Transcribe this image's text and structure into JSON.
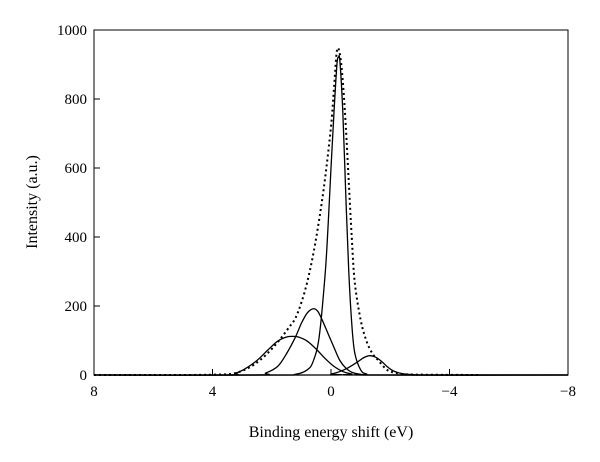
{
  "chart_data": {
    "type": "line",
    "title": "",
    "xlabel": "Binding energy shift (eV)",
    "ylabel": "Intensity (a.u.)",
    "xlim": [
      8,
      -8
    ],
    "ylim": [
      0,
      1000
    ],
    "x_reversed": true,
    "x_ticks": [
      8,
      4,
      0,
      -4,
      -8
    ],
    "x_tick_labels": [
      "8",
      "4",
      "0",
      "−4",
      "−8"
    ],
    "y_ticks": [
      0,
      200,
      400,
      600,
      800,
      1000
    ],
    "y_tick_labels": [
      "0",
      "200",
      "400",
      "600",
      "800",
      "1000"
    ],
    "grid": false,
    "legend": "none",
    "series": [
      {
        "style": "dotted",
        "color": "#000000",
        "points": [
          [
            8,
            0
          ],
          [
            5,
            0
          ],
          [
            4,
            1
          ],
          [
            3.4,
            3
          ],
          [
            3,
            12
          ],
          [
            2.6,
            30
          ],
          [
            2.2,
            58
          ],
          [
            1.8,
            95
          ],
          [
            1.4,
            140
          ],
          [
            1.2,
            165
          ],
          [
            1.0,
            210
          ],
          [
            0.8,
            270
          ],
          [
            0.6,
            350
          ],
          [
            0.4,
            450
          ],
          [
            0.2,
            570
          ],
          [
            0.0,
            720
          ],
          [
            -0.1,
            830
          ],
          [
            -0.2,
            940
          ],
          [
            -0.3,
            930
          ],
          [
            -0.4,
            850
          ],
          [
            -0.5,
            720
          ],
          [
            -0.6,
            560
          ],
          [
            -0.7,
            400
          ],
          [
            -0.8,
            270
          ],
          [
            -1.0,
            160
          ],
          [
            -1.2,
            98
          ],
          [
            -1.4,
            62
          ],
          [
            -1.6,
            42
          ],
          [
            -1.8,
            22
          ],
          [
            -2.0,
            10
          ],
          [
            -2.4,
            3
          ],
          [
            -3,
            1
          ],
          [
            -5,
            0
          ]
        ]
      },
      {
        "style": "solid",
        "color": "#000000",
        "points": [
          [
            8,
            0
          ],
          [
            2,
            0
          ],
          [
            1.2,
            2
          ],
          [
            0.8,
            15
          ],
          [
            0.6,
            40
          ],
          [
            0.4,
            110
          ],
          [
            0.2,
            290
          ],
          [
            0.1,
            430
          ],
          [
            0.0,
            600
          ],
          [
            -0.1,
            760
          ],
          [
            -0.2,
            900
          ],
          [
            -0.25,
            920
          ],
          [
            -0.3,
            910
          ],
          [
            -0.4,
            760
          ],
          [
            -0.5,
            520
          ],
          [
            -0.6,
            300
          ],
          [
            -0.7,
            150
          ],
          [
            -0.8,
            65
          ],
          [
            -1.0,
            15
          ],
          [
            -1.2,
            3
          ],
          [
            -1.6,
            0
          ],
          [
            -8,
            0
          ]
        ]
      },
      {
        "style": "solid",
        "color": "#000000",
        "points": [
          [
            8,
            0
          ],
          [
            3.6,
            0
          ],
          [
            3.2,
            6
          ],
          [
            2.9,
            18
          ],
          [
            2.5,
            42
          ],
          [
            2.1,
            75
          ],
          [
            1.8,
            98
          ],
          [
            1.5,
            110
          ],
          [
            1.3,
            112
          ],
          [
            1.1,
            110
          ],
          [
            0.8,
            98
          ],
          [
            0.5,
            75
          ],
          [
            0.2,
            48
          ],
          [
            -0.1,
            25
          ],
          [
            -0.4,
            10
          ],
          [
            -0.7,
            3
          ],
          [
            -1.0,
            0
          ],
          [
            -8,
            0
          ]
        ]
      },
      {
        "style": "solid",
        "color": "#000000",
        "points": [
          [
            8,
            0
          ],
          [
            2.6,
            0
          ],
          [
            2.2,
            6
          ],
          [
            1.8,
            25
          ],
          [
            1.5,
            62
          ],
          [
            1.2,
            110
          ],
          [
            1.0,
            150
          ],
          [
            0.8,
            180
          ],
          [
            0.6,
            192
          ],
          [
            0.45,
            185
          ],
          [
            0.3,
            160
          ],
          [
            0.1,
            120
          ],
          [
            -0.1,
            80
          ],
          [
            -0.3,
            42
          ],
          [
            -0.5,
            20
          ],
          [
            -0.7,
            8
          ],
          [
            -1.0,
            2
          ],
          [
            -1.4,
            0
          ],
          [
            -8,
            0
          ]
        ]
      },
      {
        "style": "solid",
        "color": "#000000",
        "points": [
          [
            8,
            0
          ],
          [
            0.3,
            0
          ],
          [
            0.0,
            3
          ],
          [
            -0.3,
            10
          ],
          [
            -0.6,
            22
          ],
          [
            -0.9,
            38
          ],
          [
            -1.1,
            50
          ],
          [
            -1.3,
            56
          ],
          [
            -1.5,
            52
          ],
          [
            -1.7,
            40
          ],
          [
            -1.9,
            24
          ],
          [
            -2.1,
            12
          ],
          [
            -2.4,
            4
          ],
          [
            -2.8,
            1
          ],
          [
            -3.2,
            0
          ],
          [
            -8,
            0
          ]
        ]
      }
    ]
  }
}
